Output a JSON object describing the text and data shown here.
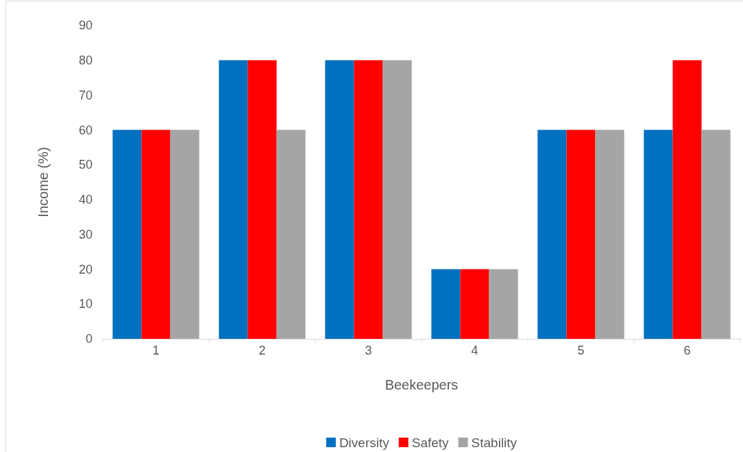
{
  "chart_data": {
    "type": "bar",
    "xlabel": "Beekeepers",
    "ylabel": "Income (%)",
    "categories": [
      "1",
      "2",
      "3",
      "4",
      "5",
      "6"
    ],
    "series": [
      {
        "name": "Diversity",
        "color": "#0070c0",
        "values": [
          60,
          80,
          80,
          20,
          60,
          60
        ]
      },
      {
        "name": "Safety",
        "color": "#ff0000",
        "values": [
          60,
          80,
          80,
          20,
          60,
          80
        ]
      },
      {
        "name": "Stability",
        "color": "#a5a5a5",
        "values": [
          60,
          60,
          80,
          20,
          60,
          60
        ]
      }
    ],
    "ylim": [
      0,
      90
    ],
    "yticks": [
      0,
      10,
      20,
      30,
      40,
      50,
      60,
      70,
      80,
      90
    ],
    "grid": false,
    "legend": "bottom"
  }
}
